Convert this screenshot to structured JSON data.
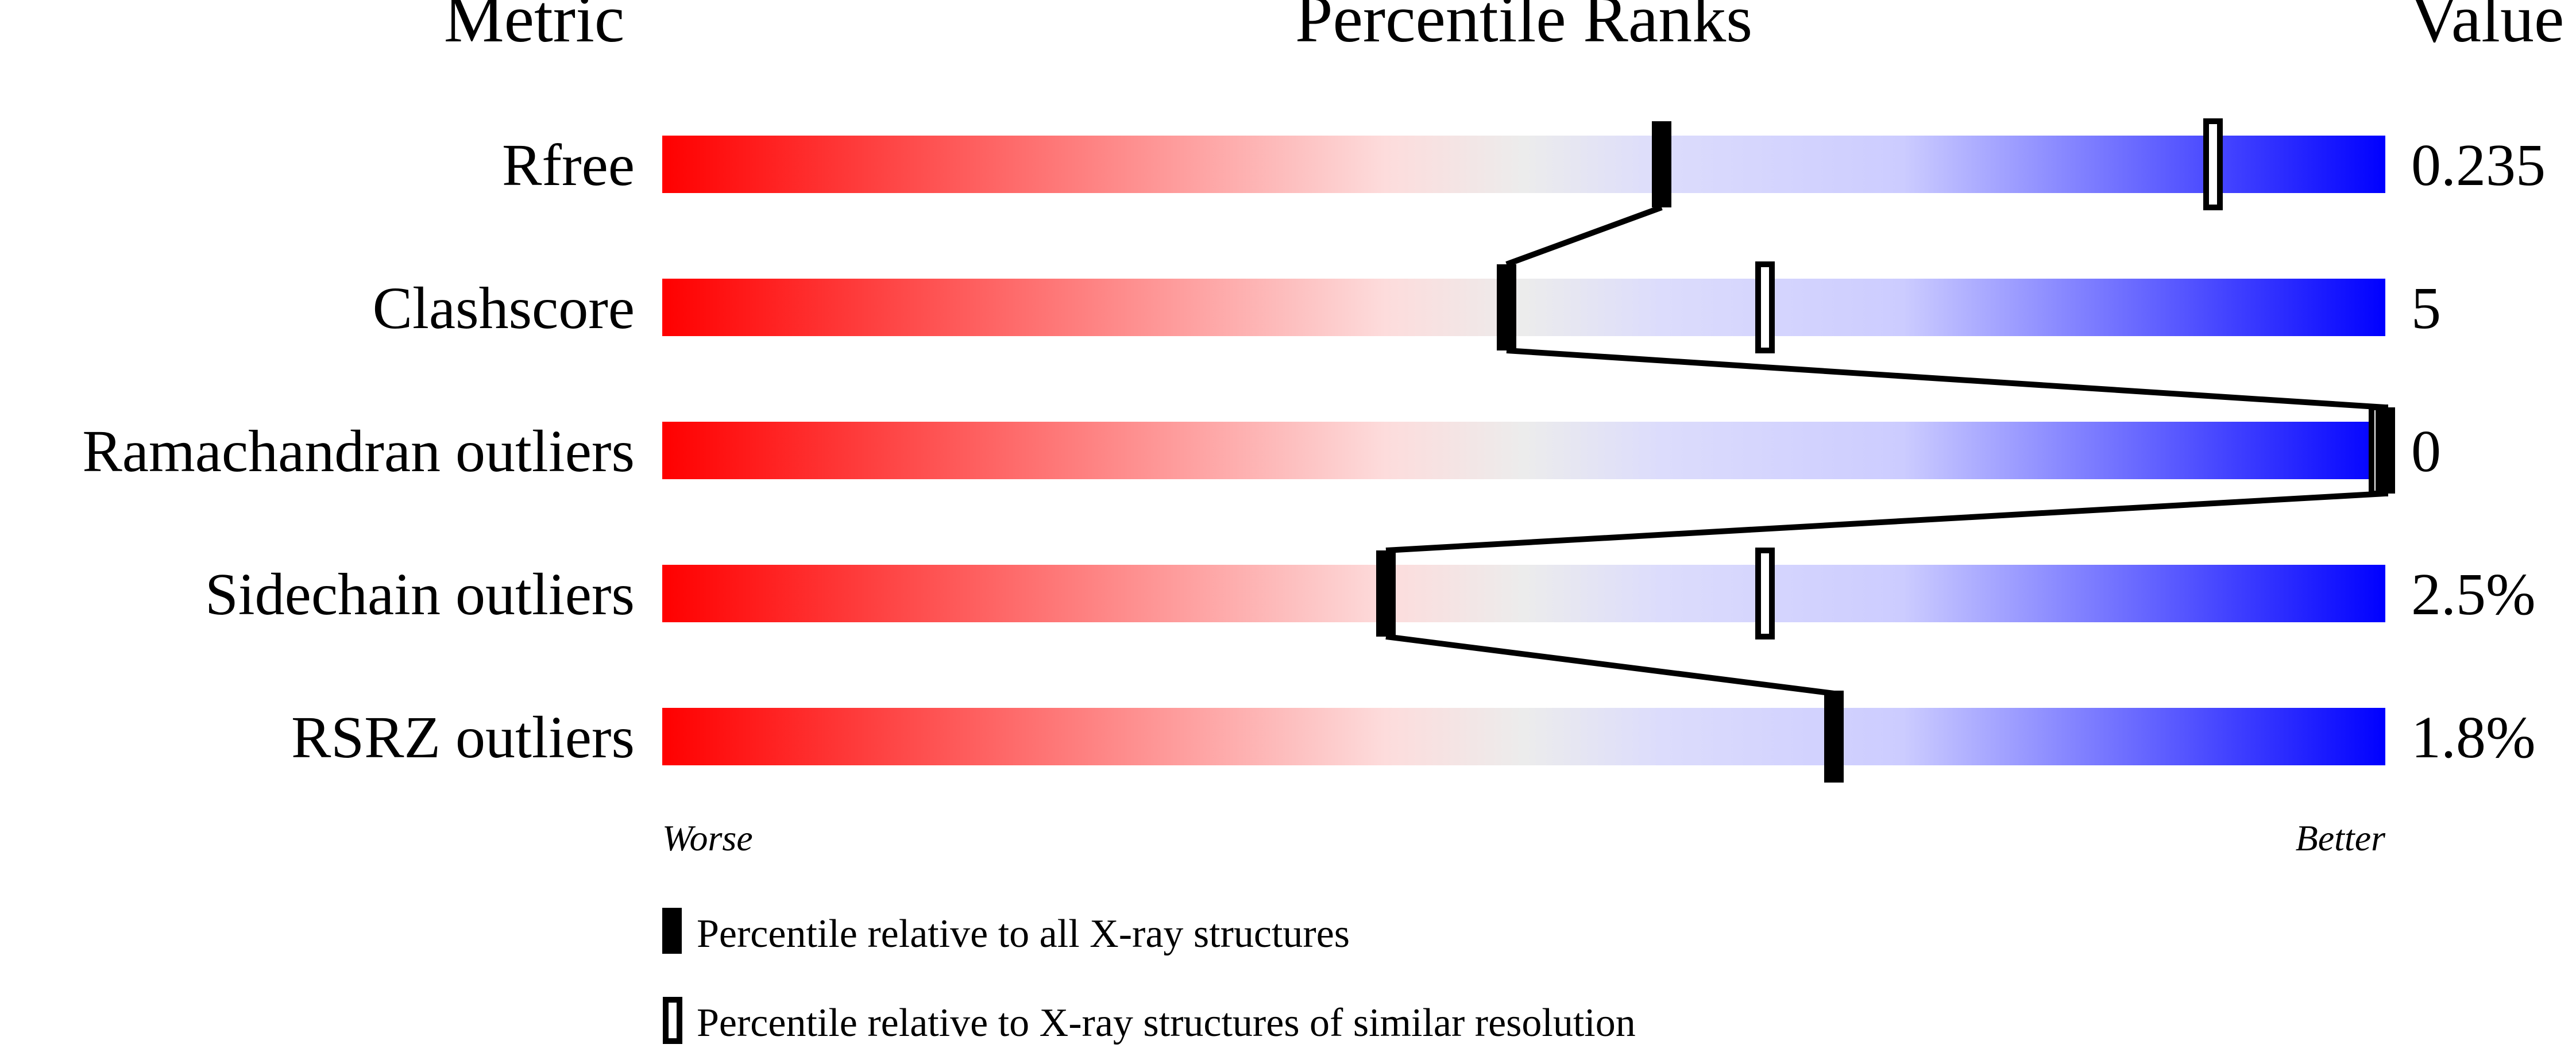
{
  "chart_data": {
    "type": "slider",
    "headers": {
      "metric": "Metric",
      "ranks": "Percentile Ranks",
      "value": "Value"
    },
    "axis": {
      "left_label": "Worse",
      "right_label": "Better",
      "range": [
        0,
        100
      ]
    },
    "metrics": [
      {
        "name": "Rfree",
        "value": "0.235",
        "percentile_all": 58,
        "percentile_similar": 90
      },
      {
        "name": "Clashscore",
        "value": "5",
        "percentile_all": 49,
        "percentile_similar": 64
      },
      {
        "name": "Ramachandran outliers",
        "value": "0",
        "percentile_all": 100,
        "percentile_similar": 100
      },
      {
        "name": "Sidechain outliers",
        "value": "2.5%",
        "percentile_all": 42,
        "percentile_similar": 64
      },
      {
        "name": "RSRZ outliers",
        "value": "1.8%",
        "percentile_all": 68,
        "percentile_similar": 68
      }
    ],
    "legend": [
      {
        "marker": "filled",
        "label": "Percentile relative to all X-ray structures"
      },
      {
        "marker": "open",
        "label": "Percentile relative to X-ray structures of similar resolution"
      }
    ],
    "colors": {
      "worse": "#ff0000",
      "neutral": "#eeeeee",
      "better": "#0000ff"
    }
  }
}
